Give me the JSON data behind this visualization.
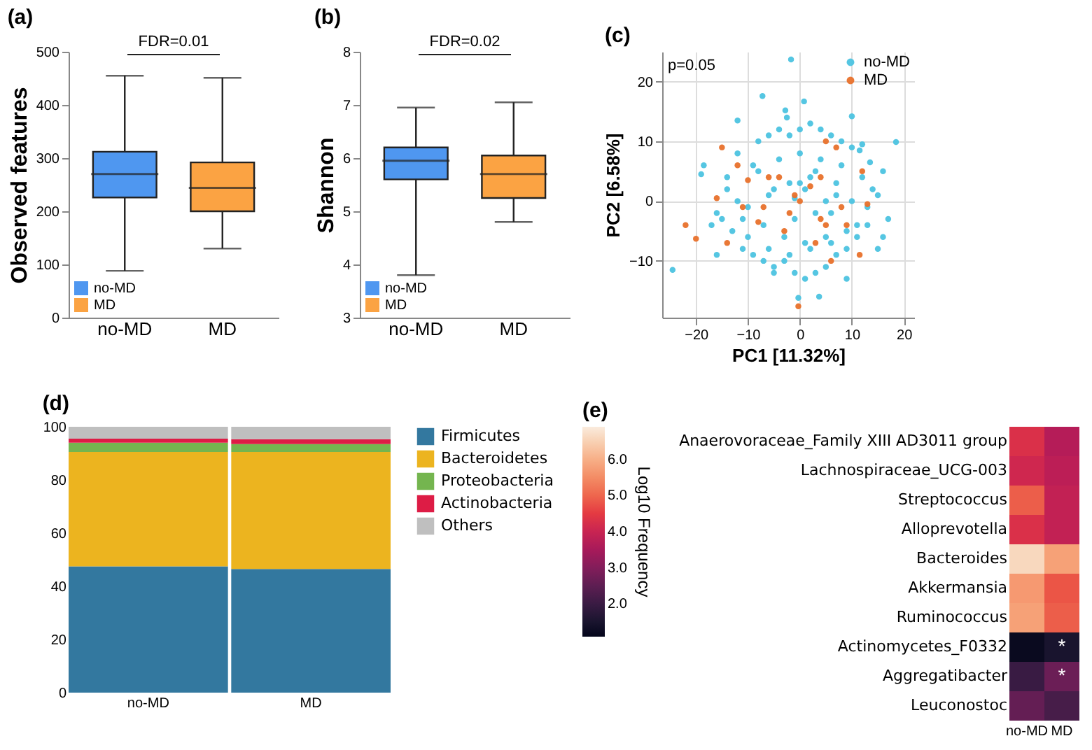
{
  "chart_data": [
    {
      "type": "box",
      "title": "(a)",
      "ylabel": "Observed features",
      "categories": [
        "no-MD",
        "MD"
      ],
      "legend": "bottom left",
      "ylim": [
        0,
        500
      ],
      "yticks": [
        0,
        100,
        200,
        300,
        400,
        500
      ],
      "annotations": [
        "FDR=0.01"
      ],
      "series": [
        {
          "name": "no-MD",
          "color": "#4f97f0",
          "boxes": [
            {
              "low": 88,
              "q1": 226,
              "median": 270,
              "q3": 312,
              "high": 455
            },
            null
          ]
        },
        {
          "name": "MD",
          "color": "#fba343",
          "boxes": [
            null,
            {
              "low": 130,
              "q1": 200,
              "median": 244,
              "q3": 292,
              "high": 451
            }
          ]
        }
      ]
    },
    {
      "type": "box",
      "title": "(b)",
      "ylabel": "Shannon",
      "categories": [
        "no-MD",
        "MD"
      ],
      "legend": "bottom left",
      "ylim": [
        3,
        8
      ],
      "yticks": [
        3,
        4,
        5,
        6,
        7,
        8
      ],
      "annotations": [
        "FDR=0.02"
      ],
      "series": [
        {
          "name": "no-MD",
          "color": "#4f97f0",
          "boxes": [
            {
              "low": 3.8,
              "q1": 5.6,
              "median": 5.95,
              "q3": 6.2,
              "high": 6.95
            },
            null
          ]
        },
        {
          "name": "MD",
          "color": "#fba343",
          "boxes": [
            null,
            {
              "low": 4.8,
              "q1": 5.25,
              "median": 5.7,
              "q3": 6.05,
              "high": 7.05
            }
          ]
        }
      ]
    },
    {
      "type": "scatter",
      "title": "(c)",
      "xlabel": "PC1 [11.32%]",
      "ylabel": "PC2 [6.58%]",
      "xlim": [
        -26.5,
        22
      ],
      "ylim": [
        -19.5,
        25
      ],
      "xticks": [
        -20,
        -10,
        0,
        10,
        20
      ],
      "yticks": [
        -10,
        0,
        10,
        20
      ],
      "grid": true,
      "legend": "top right",
      "marker": "circle",
      "annotations": [
        "p=0.05"
      ],
      "series": [
        {
          "name": "no-MD",
          "color": "#4cc3e0",
          "x": [
            -24.5,
            -1.7,
            -7.2,
            0.8,
            -2.8,
            -2.5,
            -12,
            10,
            18.5,
            -0.3,
            3.7,
            -16,
            -19,
            -18.5,
            12,
            11.5,
            13.5,
            16,
            17,
            15,
            9,
            -5,
            -10,
            -14,
            -12,
            -8,
            -6,
            -4,
            -2,
            0,
            2,
            4,
            6,
            8,
            10,
            -15,
            -13,
            -11,
            -9,
            -7,
            -5,
            -3,
            -1,
            1,
            3,
            5,
            7,
            9,
            11,
            13,
            -16,
            -12,
            -8,
            -4,
            0,
            4,
            8,
            12,
            -14,
            -10,
            -6,
            -2,
            2,
            6,
            10,
            14,
            -11,
            -7,
            -3,
            1,
            5,
            9,
            13,
            -9,
            -5,
            -1,
            3,
            7,
            11,
            -6,
            -2,
            2,
            6,
            1,
            -1,
            0,
            3,
            5,
            7,
            -17,
            15,
            16
          ],
          "values": [
            -11.5,
            23.7,
            17.6,
            16.7,
            15.2,
            14,
            13.5,
            14.2,
            9.9,
            -16.2,
            -16,
            -9,
            4.5,
            6,
            9.5,
            8.5,
            6.5,
            5,
            -3,
            -8,
            -13,
            -12,
            -6,
            2,
            8,
            10,
            11,
            12,
            11,
            12,
            13,
            12,
            11,
            10,
            9,
            -3,
            -5,
            -8,
            -9,
            -10,
            -11,
            -10,
            -12,
            -13,
            -12,
            -11,
            -9,
            -8,
            -6,
            -4,
            -2,
            0,
            5,
            7,
            8,
            7,
            6,
            4,
            4,
            -1,
            1,
            3,
            4,
            -2,
            0,
            2,
            -3,
            -4,
            -6,
            -7,
            -6,
            -5,
            -1,
            6,
            2,
            -3,
            -2,
            1,
            -4,
            -8,
            -9,
            -8,
            -7,
            2,
            0.5,
            3,
            5,
            0,
            3,
            -4,
            1,
            -6
          ]
        },
        {
          "name": "MD",
          "color": "#e8712b",
          "x": [
            -22,
            -20,
            -0.3,
            -15,
            -12,
            -10,
            -6,
            -8,
            -14,
            -2,
            0,
            5,
            6,
            9,
            11.5,
            13,
            12,
            5,
            7,
            4,
            -4,
            -3,
            2,
            -1,
            3,
            -11,
            -7,
            8,
            -16,
            4
          ],
          "values": [
            -4,
            -6.3,
            -17.6,
            9,
            6,
            3.5,
            4,
            -3.5,
            -7,
            -2,
            0,
            -4,
            -10,
            -4,
            -9,
            -0.5,
            5,
            10,
            9,
            4,
            4,
            -5,
            2.5,
            1,
            -7,
            -1,
            -1,
            -1,
            0.5,
            -3
          ]
        }
      ]
    },
    {
      "type": "bar",
      "title": "(d)",
      "stacked": true,
      "categories": [
        "no-MD",
        "MD"
      ],
      "ylim": [
        0,
        100
      ],
      "yticks": [
        0,
        20,
        40,
        60,
        80,
        100
      ],
      "legend": "right",
      "series": [
        {
          "name": "Firmicutes",
          "color": "#33789f",
          "values": [
            47.5,
            46.5
          ]
        },
        {
          "name": "Bacteroidetes",
          "color": "#ecb41f",
          "values": [
            43,
            44
          ]
        },
        {
          "name": "Proteobacteria",
          "color": "#74b54f",
          "values": [
            3.5,
            3
          ]
        },
        {
          "name": "Actinobacteria",
          "color": "#dd1c45",
          "values": [
            1.5,
            1.8
          ]
        },
        {
          "name": "Others",
          "color": "#bfbfbf",
          "values": [
            4.5,
            4.7
          ]
        }
      ]
    },
    {
      "type": "heatmap",
      "title": "(e)",
      "clabel": "Log10 Frequency",
      "categories": [
        "no-MD",
        "MD"
      ],
      "y_categories": [
        "Anaerovoraceae_Family XIII AD3011 group",
        "Lachnospiraceae_UCG-003",
        "Streptococcus",
        "Alloprevotella",
        "Bacteroides",
        "Akkermansia",
        "Ruminococcus",
        "Actinomycetes_F0332",
        "Aggregatibacter",
        "Leuconostoc"
      ],
      "cells": [
        [
          4.3,
          3.7
        ],
        [
          4.1,
          3.8
        ],
        [
          4.9,
          3.9
        ],
        [
          4.3,
          3.9
        ],
        [
          6.6,
          5.8
        ],
        [
          5.7,
          4.8
        ],
        [
          5.8,
          4.9
        ],
        [
          1.2,
          1.5
        ],
        [
          2.0,
          2.7
        ],
        [
          2.6,
          2.2
        ]
      ],
      "cell_labels": [
        [
          null,
          null
        ],
        [
          null,
          null
        ],
        [
          null,
          null
        ],
        [
          null,
          null
        ],
        [
          null,
          null
        ],
        [
          null,
          null
        ],
        [
          null,
          null
        ],
        [
          null,
          "*"
        ],
        [
          null,
          "*"
        ],
        [
          null,
          null
        ]
      ],
      "clim": [
        1.1,
        6.9
      ],
      "cticks": [
        {
          "value": 2,
          "label": "2.0"
        },
        {
          "value": 3,
          "label": "3.0"
        },
        {
          "value": 4,
          "label": "4.0"
        },
        {
          "value": 5,
          "label": "5.0"
        },
        {
          "value": 6,
          "label": "6.0"
        }
      ]
    }
  ]
}
